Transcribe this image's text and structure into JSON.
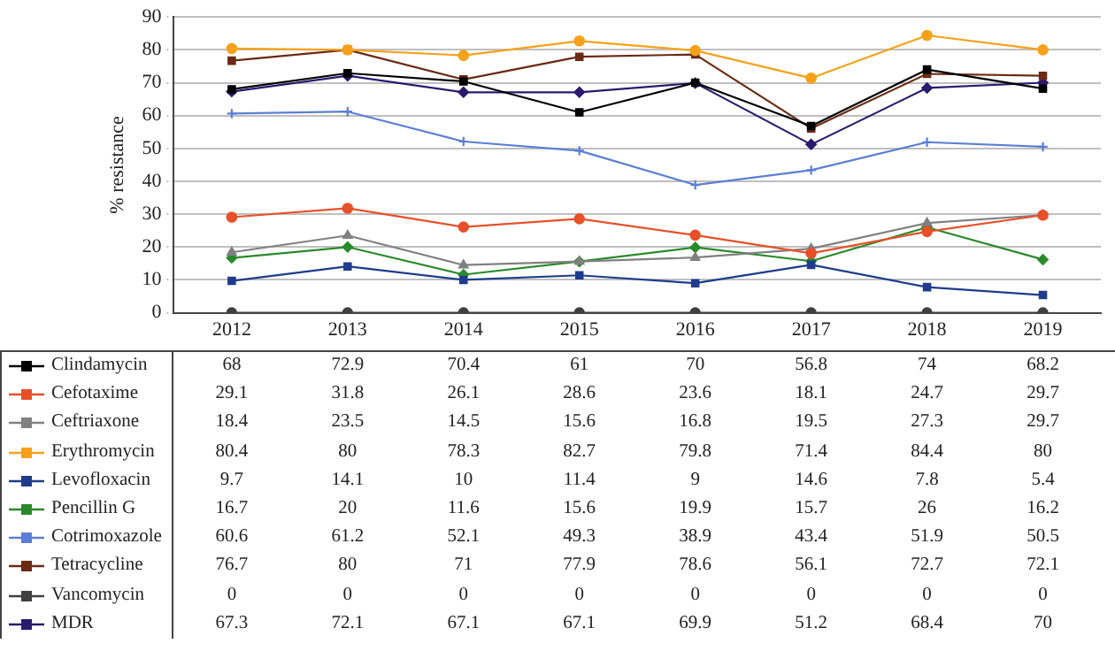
{
  "chart_data": {
    "type": "line",
    "ylabel": "% resistance",
    "categories": [
      "2012",
      "2013",
      "2014",
      "2015",
      "2016",
      "2017",
      "2018",
      "2019"
    ],
    "ylim": [
      0,
      90
    ],
    "yticks": [
      0,
      10,
      20,
      30,
      40,
      50,
      60,
      70,
      80,
      90
    ],
    "grid": "y",
    "legend": "bottom",
    "data_labels": true,
    "series": [
      {
        "name": "Clindamycin",
        "color": "#000000",
        "marker": "square",
        "values": [
          68,
          72.9,
          70.4,
          61,
          70,
          56.8,
          74,
          68.2
        ]
      },
      {
        "name": "Cefotaxime",
        "color": "#e8502a",
        "marker": "circle",
        "values": [
          29.1,
          31.8,
          26.1,
          28.6,
          23.6,
          18.1,
          24.7,
          29.7
        ]
      },
      {
        "name": "Ceftriaxone",
        "color": "#808080",
        "marker": "triangle",
        "values": [
          18.4,
          23.5,
          14.5,
          15.6,
          16.8,
          19.5,
          27.3,
          29.7
        ]
      },
      {
        "name": "Erythromycin",
        "color": "#f7a11a",
        "marker": "circle",
        "values": [
          80.4,
          80,
          78.3,
          82.7,
          79.8,
          71.4,
          84.4,
          80
        ]
      },
      {
        "name": "Levofloxacin",
        "color": "#1f3c8c",
        "marker": "square",
        "values": [
          9.7,
          14.1,
          10,
          11.4,
          9,
          14.6,
          7.8,
          5.4
        ]
      },
      {
        "name": "Pencillin G",
        "color": "#2a8a2a",
        "marker": "diamond",
        "values": [
          16.7,
          20,
          11.6,
          15.6,
          19.9,
          15.7,
          26,
          16.2
        ]
      },
      {
        "name": "Cotrimoxazole",
        "color": "#5b7fd6",
        "marker": "cross",
        "values": [
          60.6,
          61.2,
          52.1,
          49.3,
          38.9,
          43.4,
          51.9,
          50.5
        ]
      },
      {
        "name": "Tetracycline",
        "color": "#6b2a14",
        "marker": "square",
        "values": [
          76.7,
          80,
          71,
          77.9,
          78.6,
          56.1,
          72.7,
          72.1
        ]
      },
      {
        "name": "Vancomycin",
        "color": "#404040",
        "marker": "circle",
        "values": [
          0,
          0,
          0,
          0,
          0,
          0,
          0,
          0
        ]
      },
      {
        "name": "MDR",
        "color": "#2a1a6e",
        "marker": "diamond",
        "values": [
          67.3,
          72.1,
          67.1,
          67.1,
          69.9,
          51.2,
          68.4,
          70
        ]
      }
    ]
  }
}
